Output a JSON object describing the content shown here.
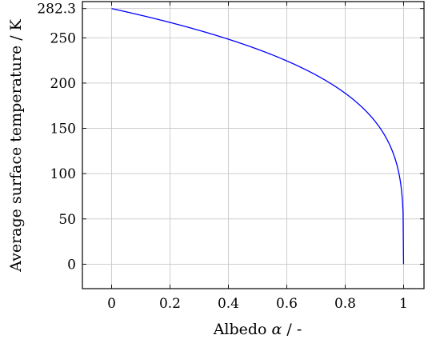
{
  "chart_data": {
    "type": "line",
    "xlabel_prefix": "Albedo ",
    "xlabel_symbol": "α",
    "xlabel_suffix": " / -",
    "ylabel": "Average surface temperature / K",
    "xlim": [
      -0.1,
      1.07
    ],
    "ylim": [
      -27,
      290
    ],
    "x_ticks": [
      0,
      0.2,
      0.4,
      0.6,
      0.8,
      1
    ],
    "x_tick_labels": [
      "0",
      "0.2",
      "0.4",
      "0.6",
      "0.8",
      "1"
    ],
    "y_ticks": [
      0,
      50,
      100,
      150,
      200,
      250,
      282.3
    ],
    "y_tick_labels": [
      "0",
      "50",
      "100",
      "150",
      "200",
      "250",
      "282.3"
    ],
    "grid": true,
    "series": [
      {
        "color": "#0000ff",
        "formula": "282.3 * (1 - alpha)^0.25",
        "x": [
          0,
          0.1,
          0.2,
          0.3,
          0.4,
          0.5,
          0.6,
          0.7,
          0.8,
          0.85,
          0.9,
          0.95,
          0.98,
          0.99,
          0.999,
          1
        ],
        "y": [
          282.3,
          274.9,
          267.0,
          258.3,
          248.5,
          237.4,
          224.5,
          209.0,
          188.8,
          175.7,
          158.8,
          133.5,
          106.2,
          89.3,
          50.2,
          0
        ]
      }
    ]
  }
}
